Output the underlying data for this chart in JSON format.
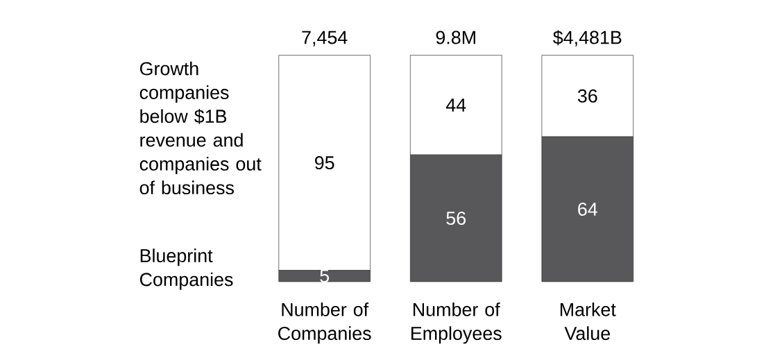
{
  "chart_data": {
    "type": "bar",
    "stacked": true,
    "categories": [
      "Number of Companies",
      "Number of Employees",
      "Market Value"
    ],
    "series": [
      {
        "name": "Blueprint Companies",
        "color": "#58585a",
        "values": [
          5,
          56,
          64
        ]
      },
      {
        "name": "Growth companies below $1B revenue and companies out of business",
        "color": "#ffffff",
        "values": [
          95,
          44,
          36
        ]
      }
    ],
    "annotations": [
      {
        "text": "7,454",
        "x": "Number of Companies",
        "y": 100
      },
      {
        "text": "9.8M",
        "x": "Number of Employees",
        "y": 100
      },
      {
        "text": "$4,481B",
        "x": "Market Value",
        "y": 100
      }
    ],
    "data_labels": true,
    "legend": "left"
  }
}
